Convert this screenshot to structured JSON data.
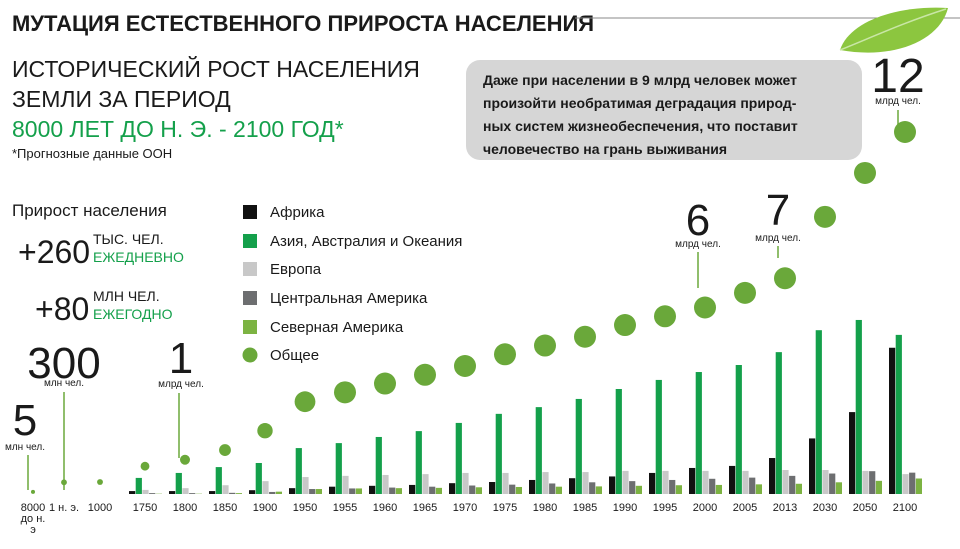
{
  "chart_data": {
    "type": "bar",
    "title": "МУТАЦИЯ ЕСТЕСТВЕННОГО ПРИРОСТА НАСЕЛЕНИЯ",
    "subtitle": [
      "ИСТОРИЧЕСКИЙ РОСТ НАСЕЛЕНИЯ",
      "ЗЕМЛИ ЗА ПЕРИОД",
      "8000 ЛЕТ ДО Н. Э. - 2100 ГОД*"
    ],
    "note": "*Прогнозные данные ООН",
    "growth": {
      "title": "Прирост населения",
      "items": [
        {
          "value": "+260",
          "unit": "ТЫС. ЧЕЛ.",
          "period": "ЕЖЕДНЕВНО"
        },
        {
          "value": "+80",
          "unit": "МЛН ЧЕЛ.",
          "period": "ЕЖЕГОДНО"
        }
      ]
    },
    "callout": [
      "Даже при населении в  9 млрд человек может",
      "произойти необратимая деградация природ-",
      "ных систем жизнеобеспечения, что поставит",
      "человечество на грань выживания"
    ],
    "annotations": [
      {
        "number": 5,
        "unit": "млн чел."
      },
      {
        "number": 300,
        "unit": "млн чел."
      },
      {
        "number": 1,
        "unit": "млрд чел."
      },
      {
        "number": 6,
        "unit": "млрд чел."
      },
      {
        "number": 7,
        "unit": "млрд чел."
      },
      {
        "number": 12,
        "unit": "млрд чел."
      }
    ],
    "categories": [
      "8000 до н. э",
      "1 н. э.",
      "1000",
      "1750",
      "1800",
      "1850",
      "1900",
      "1950",
      "1955",
      "1960",
      "1965",
      "1970",
      "1975",
      "1980",
      "1985",
      "1990",
      "1995",
      "2000",
      "2005",
      "2013",
      "2030",
      "2050",
      "2100"
    ],
    "ylim": [
      0,
      12
    ],
    "series": [
      {
        "name": "Африка",
        "color": "#111111",
        "values": [
          null,
          null,
          null,
          0.1,
          0.1,
          0.1,
          0.13,
          0.2,
          0.25,
          0.28,
          0.31,
          0.37,
          0.41,
          0.48,
          0.54,
          0.6,
          0.72,
          0.89,
          0.96,
          1.23,
          1.9,
          2.8,
          5.0
        ]
      },
      {
        "name": "Азия, Австралия и Океания",
        "color": "#14a04b",
        "values": [
          null,
          null,
          null,
          0.55,
          0.72,
          0.92,
          1.06,
          1.57,
          1.74,
          1.95,
          2.15,
          2.43,
          2.74,
          2.97,
          3.25,
          3.59,
          3.9,
          4.17,
          4.41,
          4.85,
          5.6,
          5.95,
          5.44
        ]
      },
      {
        "name": "Европа",
        "color": "#c8c8c8",
        "values": [
          null,
          null,
          null,
          0.14,
          0.2,
          0.3,
          0.44,
          0.58,
          0.62,
          0.65,
          0.68,
          0.72,
          0.72,
          0.75,
          0.75,
          0.79,
          0.79,
          0.79,
          0.79,
          0.82,
          0.82,
          0.79,
          0.68
        ]
      },
      {
        "name": "Центральная Америка",
        "color": "#6d6e70",
        "values": [
          null,
          null,
          null,
          0.03,
          0.03,
          0.04,
          0.07,
          0.17,
          0.19,
          0.22,
          0.25,
          0.29,
          0.32,
          0.36,
          0.4,
          0.44,
          0.48,
          0.52,
          0.56,
          0.62,
          0.7,
          0.78,
          0.73
        ]
      },
      {
        "name": "Северная Америка",
        "color": "#7cb342",
        "values": [
          null,
          null,
          null,
          0.01,
          0.01,
          0.03,
          0.08,
          0.17,
          0.19,
          0.2,
          0.21,
          0.23,
          0.24,
          0.25,
          0.26,
          0.28,
          0.3,
          0.31,
          0.33,
          0.35,
          0.4,
          0.45,
          0.53
        ]
      }
    ],
    "total": {
      "name": "Общее",
      "color": "#6aa83a",
      "values": [
        0.005,
        0.3,
        0.31,
        0.8,
        1,
        1.3,
        1.9,
        2.8,
        3.1,
        3.4,
        3.7,
        4.0,
        4.4,
        4.7,
        5.0,
        5.4,
        5.7,
        6,
        6.5,
        7,
        9.1,
        10.6,
        12
      ]
    }
  }
}
